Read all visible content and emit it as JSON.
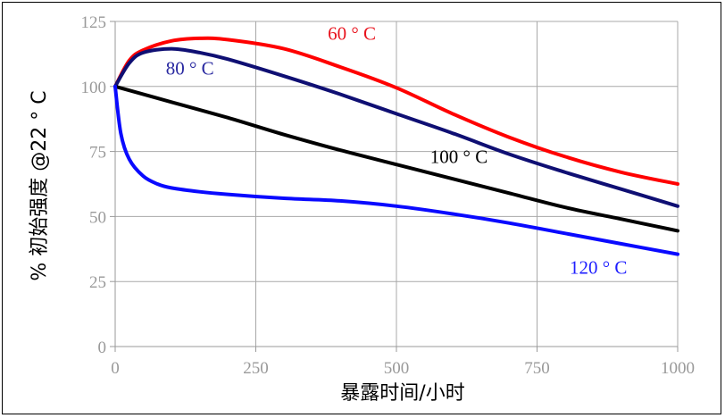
{
  "chart_data": {
    "type": "line",
    "xlabel": "暴露时间/小时",
    "ylabel": "% 初始强度 @22 ° C",
    "xlim": [
      0,
      1000
    ],
    "ylim": [
      0,
      125
    ],
    "xticks": [
      "0",
      "250",
      "500",
      "750",
      "1000"
    ],
    "yticks": [
      "0",
      "25",
      "50",
      "75",
      "100",
      "125"
    ],
    "grid": true,
    "series": [
      {
        "name": "60 ° C",
        "color": "#ff0000",
        "label_color": "#e8141e",
        "x": [
          0,
          25,
          50,
          100,
          150,
          200,
          300,
          400,
          500,
          600,
          700,
          800,
          900,
          1000
        ],
        "y": [
          100,
          110,
          114,
          117.5,
          118.5,
          118,
          114.5,
          107.5,
          99.5,
          89.5,
          80.5,
          73,
          67,
          62.5
        ]
      },
      {
        "name": "80 ° C",
        "color": "#0f0f73",
        "label_color": "#2828a0",
        "x": [
          0,
          25,
          50,
          100,
          150,
          200,
          300,
          400,
          500,
          600,
          700,
          800,
          900,
          1000
        ],
        "y": [
          100,
          109,
          113,
          114.5,
          113,
          110.5,
          104,
          97,
          89.5,
          82,
          74,
          67,
          60.5,
          54
        ]
      },
      {
        "name": "100 ° C",
        "color": "#000000",
        "label_color": "#000000",
        "x": [
          0,
          100,
          200,
          300,
          400,
          500,
          600,
          700,
          800,
          900,
          1000
        ],
        "y": [
          100,
          94,
          88,
          81.5,
          75.5,
          70,
          64.5,
          59,
          53.5,
          49,
          44.5
        ]
      },
      {
        "name": "120 ° C",
        "color": "#0a0aff",
        "label_color": "#1e1eff",
        "x": [
          0,
          10,
          25,
          50,
          75,
          100,
          150,
          200,
          300,
          400,
          500,
          600,
          700,
          800,
          900,
          1000
        ],
        "y": [
          100,
          82,
          72,
          65.5,
          62.5,
          61,
          59.5,
          58.5,
          57,
          56,
          54,
          51,
          47.5,
          43.5,
          39.5,
          35.5
        ]
      }
    ],
    "annotations": [
      {
        "text": "60 ° C",
        "x": 378,
        "y": 118,
        "color": "#e8141e"
      },
      {
        "text": "80 ° C",
        "x": 90,
        "y": 104.5,
        "color": "#2828a0"
      },
      {
        "text": "100 ° C",
        "x": 560,
        "y": 70.5,
        "color": "#000000"
      },
      {
        "text": "120 ° C",
        "x": 808,
        "y": 28,
        "color": "#1e1eff"
      }
    ]
  }
}
